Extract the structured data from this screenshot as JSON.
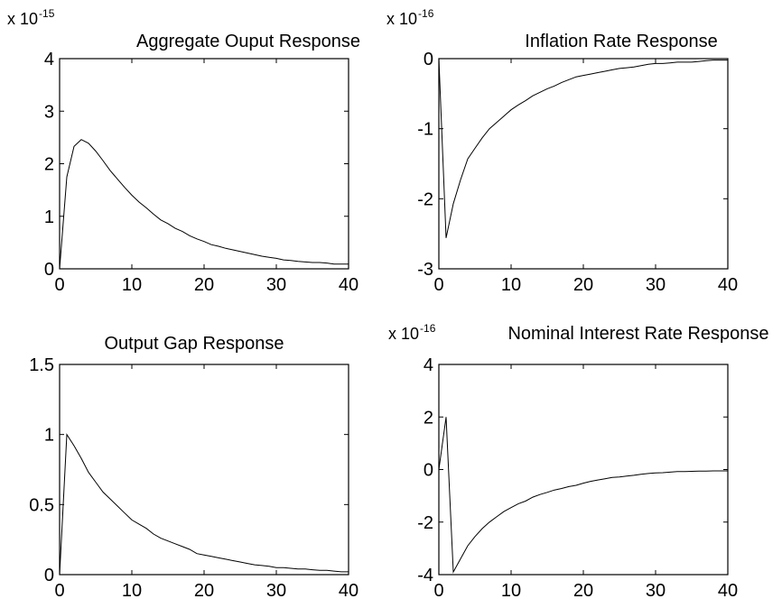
{
  "chart_data": [
    {
      "type": "line",
      "title": "Aggregate Ouput Response",
      "exponent": {
        "base": "x 10",
        "sup": "-15"
      },
      "xlim": [
        0,
        40
      ],
      "ylim": [
        0,
        4
      ],
      "xticks": [
        0,
        10,
        20,
        30,
        40
      ],
      "yticks": [
        0,
        1,
        2,
        3,
        4
      ],
      "grid": false,
      "x": [
        0,
        1,
        2,
        3,
        4,
        5,
        6,
        7,
        8,
        9,
        10,
        11,
        12,
        13,
        14,
        15,
        16,
        17,
        18,
        19,
        20,
        21,
        22,
        23,
        24,
        25,
        26,
        27,
        28,
        29,
        30,
        31,
        32,
        33,
        34,
        35,
        36,
        37,
        38,
        39,
        40
      ],
      "values": [
        0,
        1.75,
        2.33,
        2.46,
        2.39,
        2.24,
        2.06,
        1.87,
        1.71,
        1.55,
        1.4,
        1.27,
        1.16,
        1.04,
        0.93,
        0.86,
        0.77,
        0.71,
        0.63,
        0.57,
        0.52,
        0.46,
        0.43,
        0.39,
        0.36,
        0.33,
        0.3,
        0.27,
        0.24,
        0.22,
        0.2,
        0.17,
        0.16,
        0.14,
        0.13,
        0.12,
        0.12,
        0.11,
        0.09,
        0.09,
        0.09
      ]
    },
    {
      "type": "line",
      "title": "Inflation Rate Response",
      "exponent": {
        "base": "x 10",
        "sup": "-16"
      },
      "xlim": [
        0,
        40
      ],
      "ylim": [
        -3,
        0
      ],
      "xticks": [
        0,
        10,
        20,
        30,
        40
      ],
      "yticks": [
        -3,
        -2,
        -1,
        0
      ],
      "grid": false,
      "x": [
        0,
        1,
        2,
        3,
        4,
        5,
        6,
        7,
        8,
        9,
        10,
        11,
        12,
        13,
        14,
        15,
        16,
        17,
        18,
        19,
        20,
        21,
        22,
        23,
        24,
        25,
        26,
        27,
        28,
        29,
        30,
        31,
        32,
        33,
        34,
        35,
        36,
        37,
        38,
        39,
        40
      ],
      "values": [
        0,
        -2.56,
        -2.07,
        -1.73,
        -1.43,
        -1.28,
        -1.13,
        -1.0,
        -0.91,
        -0.82,
        -0.73,
        -0.66,
        -0.6,
        -0.53,
        -0.48,
        -0.43,
        -0.39,
        -0.34,
        -0.3,
        -0.26,
        -0.24,
        -0.22,
        -0.2,
        -0.18,
        -0.16,
        -0.14,
        -0.13,
        -0.12,
        -0.1,
        -0.08,
        -0.07,
        -0.07,
        -0.06,
        -0.05,
        -0.05,
        -0.05,
        -0.04,
        -0.03,
        -0.02,
        -0.02,
        -0.02
      ]
    },
    {
      "type": "line",
      "title": "Output Gap Response",
      "exponent": {
        "base": "",
        "sup": ""
      },
      "xlim": [
        0,
        40
      ],
      "ylim": [
        0,
        1.5
      ],
      "xticks": [
        0,
        10,
        20,
        30,
        40
      ],
      "yticks": [
        0,
        0.5,
        1,
        1.5
      ],
      "yticklabels": [
        "0",
        "0.5",
        "1",
        "1.5"
      ],
      "grid": false,
      "x": [
        0,
        1,
        2,
        3,
        4,
        5,
        6,
        7,
        8,
        9,
        10,
        11,
        12,
        13,
        14,
        15,
        16,
        17,
        18,
        19,
        20,
        21,
        22,
        23,
        24,
        25,
        26,
        27,
        28,
        29,
        30,
        31,
        32,
        33,
        34,
        35,
        36,
        37,
        38,
        39,
        40
      ],
      "values": [
        0,
        1.0,
        0.92,
        0.83,
        0.73,
        0.66,
        0.59,
        0.54,
        0.49,
        0.44,
        0.39,
        0.36,
        0.33,
        0.29,
        0.26,
        0.24,
        0.22,
        0.2,
        0.18,
        0.15,
        0.14,
        0.13,
        0.12,
        0.11,
        0.1,
        0.09,
        0.08,
        0.07,
        0.065,
        0.06,
        0.05,
        0.05,
        0.045,
        0.04,
        0.04,
        0.035,
        0.03,
        0.03,
        0.025,
        0.02,
        0.02
      ]
    },
    {
      "type": "line",
      "title": "Nominal Interest Rate Response",
      "exponent": {
        "base": "x 10",
        "sup": "-16"
      },
      "xlim": [
        0,
        40
      ],
      "ylim": [
        -4,
        4
      ],
      "xticks": [
        0,
        10,
        20,
        30,
        40
      ],
      "yticks": [
        -4,
        -2,
        0,
        2,
        4
      ],
      "grid": false,
      "x": [
        0,
        1,
        2,
        3,
        4,
        5,
        6,
        7,
        8,
        9,
        10,
        11,
        12,
        13,
        14,
        15,
        16,
        17,
        18,
        19,
        20,
        21,
        22,
        23,
        24,
        25,
        26,
        27,
        28,
        29,
        30,
        31,
        32,
        33,
        34,
        35,
        36,
        37,
        38,
        39,
        40
      ],
      "values": [
        0,
        2.0,
        -3.9,
        -3.4,
        -2.9,
        -2.55,
        -2.25,
        -2.0,
        -1.8,
        -1.6,
        -1.45,
        -1.3,
        -1.2,
        -1.05,
        -0.95,
        -0.87,
        -0.78,
        -0.72,
        -0.65,
        -0.6,
        -0.52,
        -0.45,
        -0.4,
        -0.35,
        -0.3,
        -0.28,
        -0.25,
        -0.22,
        -0.18,
        -0.15,
        -0.13,
        -0.12,
        -0.1,
        -0.08,
        -0.08,
        -0.07,
        -0.06,
        -0.06,
        -0.05,
        -0.05,
        -0.05
      ]
    }
  ]
}
